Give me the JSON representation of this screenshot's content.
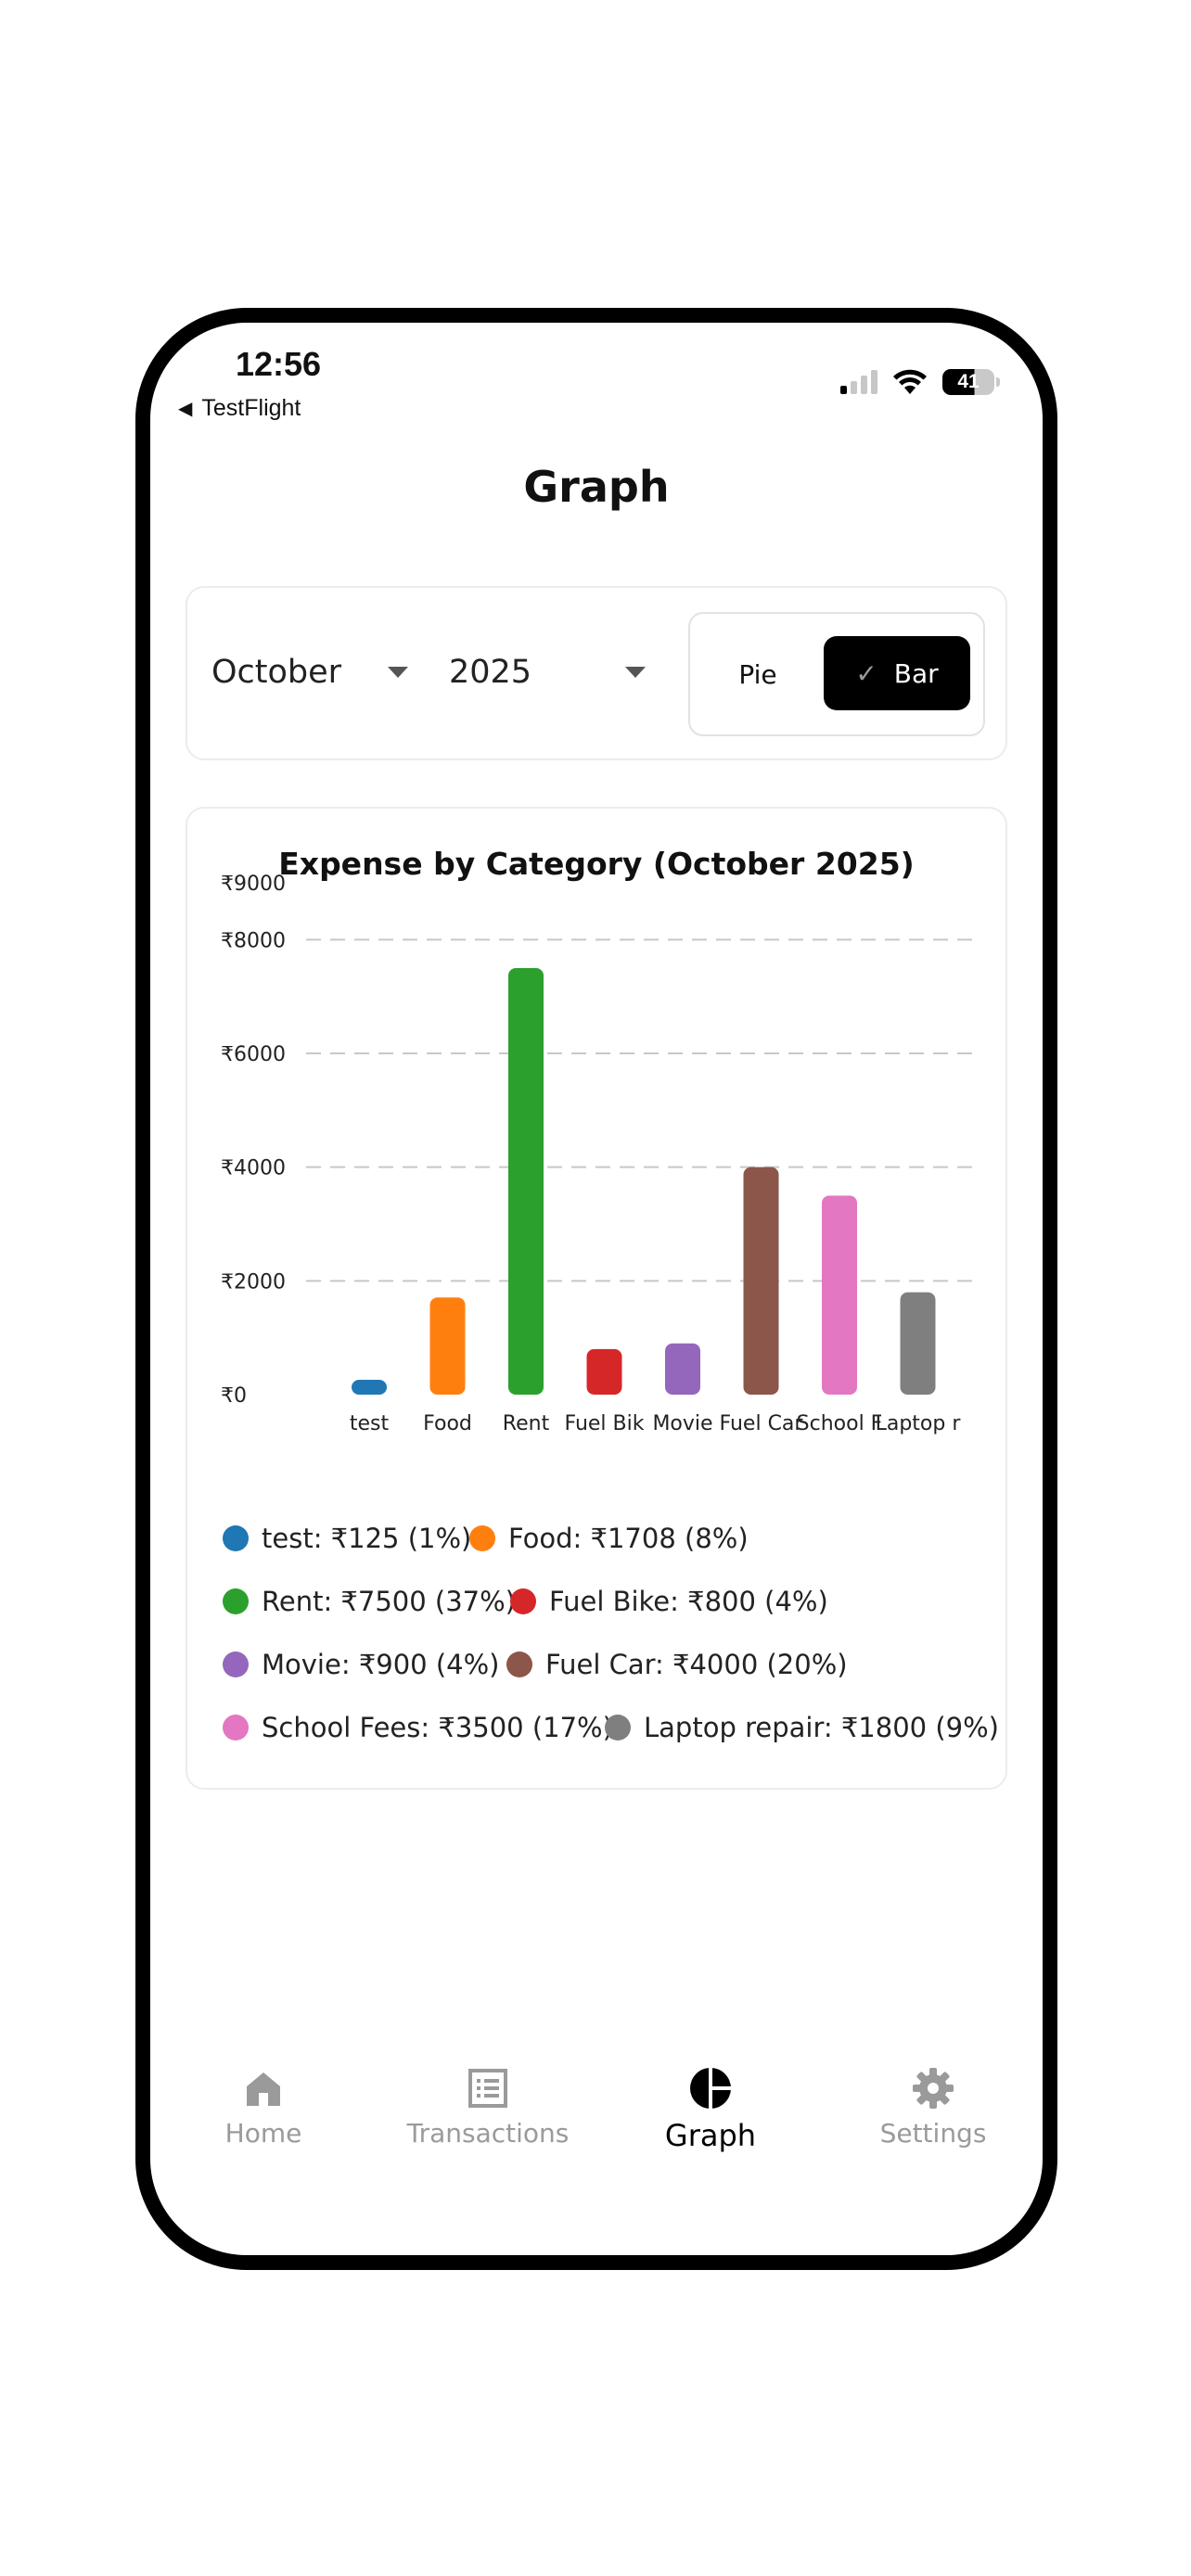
{
  "status_bar": {
    "time": "12:56",
    "back_app": "TestFlight",
    "battery": "41"
  },
  "page": {
    "title": "Graph"
  },
  "controls": {
    "month": "October",
    "year": "2025",
    "view_toggle": {
      "pie_label": "Pie",
      "bar_label": "Bar",
      "selected": "Bar"
    }
  },
  "chart_data": {
    "type": "bar",
    "title": "Expense by Category (October 2025)",
    "categories": [
      "test",
      "Food",
      "Rent",
      "Fuel Bik",
      "Movie",
      "Fuel Car",
      "School F",
      "Laptop r"
    ],
    "values": [
      125,
      1708,
      7500,
      800,
      900,
      4000,
      3500,
      1800
    ],
    "colors": [
      "#1f77b4",
      "#ff7f0e",
      "#2ca02c",
      "#d62728",
      "#9467bd",
      "#8c564b",
      "#e377c2",
      "#7f7f7f"
    ],
    "y_ticks": [
      "₹0",
      "₹2000",
      "₹4000",
      "₹6000",
      "₹8000",
      "₹9000"
    ],
    "y_tick_values": [
      0,
      2000,
      4000,
      6000,
      8000,
      9000
    ],
    "ylim": [
      0,
      9000
    ],
    "grid": "dashed horizontal"
  },
  "legend": [
    {
      "label": "test: ₹125 (1%)",
      "color": "#1f77b4"
    },
    {
      "label": "Food: ₹1708 (8%)",
      "color": "#ff7f0e"
    },
    {
      "label": "Rent: ₹7500 (37%)",
      "color": "#2ca02c"
    },
    {
      "label": "Fuel Bike: ₹800 (4%)",
      "color": "#d62728"
    },
    {
      "label": "Movie: ₹900 (4%)",
      "color": "#9467bd"
    },
    {
      "label": "Fuel Car: ₹4000 (20%)",
      "color": "#8c564b"
    },
    {
      "label": "School Fees: ₹3500 (17%)",
      "color": "#e377c2"
    },
    {
      "label": "Laptop repair: ₹1800 (9%)",
      "color": "#7f7f7f"
    }
  ],
  "tabs": [
    {
      "label": "Home",
      "icon": "home-icon"
    },
    {
      "label": "Transactions",
      "icon": "list-icon"
    },
    {
      "label": "Graph",
      "icon": "pie-chart-icon",
      "active": true
    },
    {
      "label": "Settings",
      "icon": "gear-icon"
    }
  ]
}
